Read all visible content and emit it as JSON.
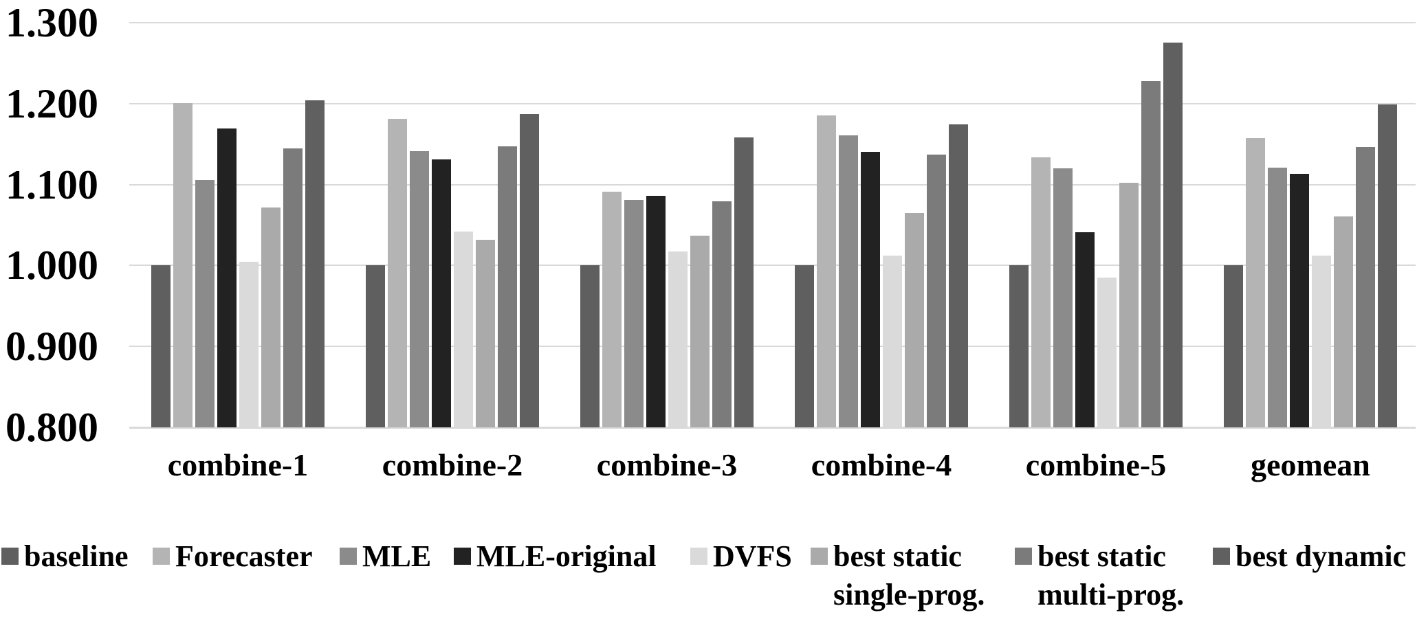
{
  "chart_data": {
    "type": "bar",
    "title": "",
    "xlabel": "",
    "ylabel": "",
    "grid": true,
    "legend_position": "bottom",
    "categories": [
      "combine-1",
      "combine-2",
      "combine-3",
      "combine-4",
      "combine-5",
      "geomean"
    ],
    "y_axis": {
      "min": 0.8,
      "max": 1.3,
      "step": 0.1,
      "tick_labels": [
        "0.800",
        "0.900",
        "1.000",
        "1.100",
        "1.200",
        "1.300"
      ]
    },
    "series": [
      {
        "name": "baseline",
        "legend_lines": [
          "baseline"
        ],
        "color": "#5f5f5f",
        "values": [
          1.0,
          1.0,
          1.0,
          1.0,
          1.0,
          1.0
        ]
      },
      {
        "name": "Forecaster",
        "legend_lines": [
          "Forecaster"
        ],
        "color": "#b4b4b4",
        "values": [
          1.201,
          1.181,
          1.091,
          1.185,
          1.134,
          1.157
        ]
      },
      {
        "name": "MLE",
        "legend_lines": [
          "MLE"
        ],
        "color": "#8b8b8b",
        "values": [
          1.106,
          1.141,
          1.081,
          1.161,
          1.12,
          1.121
        ]
      },
      {
        "name": "MLE-original",
        "legend_lines": [
          "MLE-original"
        ],
        "color": "#222222",
        "values": [
          1.169,
          1.131,
          1.086,
          1.14,
          1.041,
          1.113
        ]
      },
      {
        "name": "DVFS",
        "legend_lines": [
          "DVFS"
        ],
        "color": "#dadada",
        "values": [
          1.005,
          1.042,
          1.017,
          1.012,
          0.985,
          1.012
        ]
      },
      {
        "name": "best static single-prog.",
        "legend_lines": [
          "best static",
          "single-prog."
        ],
        "color": "#aaaaaa",
        "values": [
          1.072,
          1.032,
          1.037,
          1.065,
          1.102,
          1.061
        ]
      },
      {
        "name": "best static multi-prog.",
        "legend_lines": [
          "best static",
          "multi-prog."
        ],
        "color": "#7b7b7b",
        "values": [
          1.145,
          1.147,
          1.079,
          1.137,
          1.228,
          1.146
        ]
      },
      {
        "name": "best dynamic",
        "legend_lines": [
          "best dynamic"
        ],
        "color": "#606060",
        "values": [
          1.204,
          1.187,
          1.158,
          1.174,
          1.275,
          1.199
        ]
      }
    ],
    "gridline_color": "#d9d9d9",
    "text_color": "#000000"
  }
}
